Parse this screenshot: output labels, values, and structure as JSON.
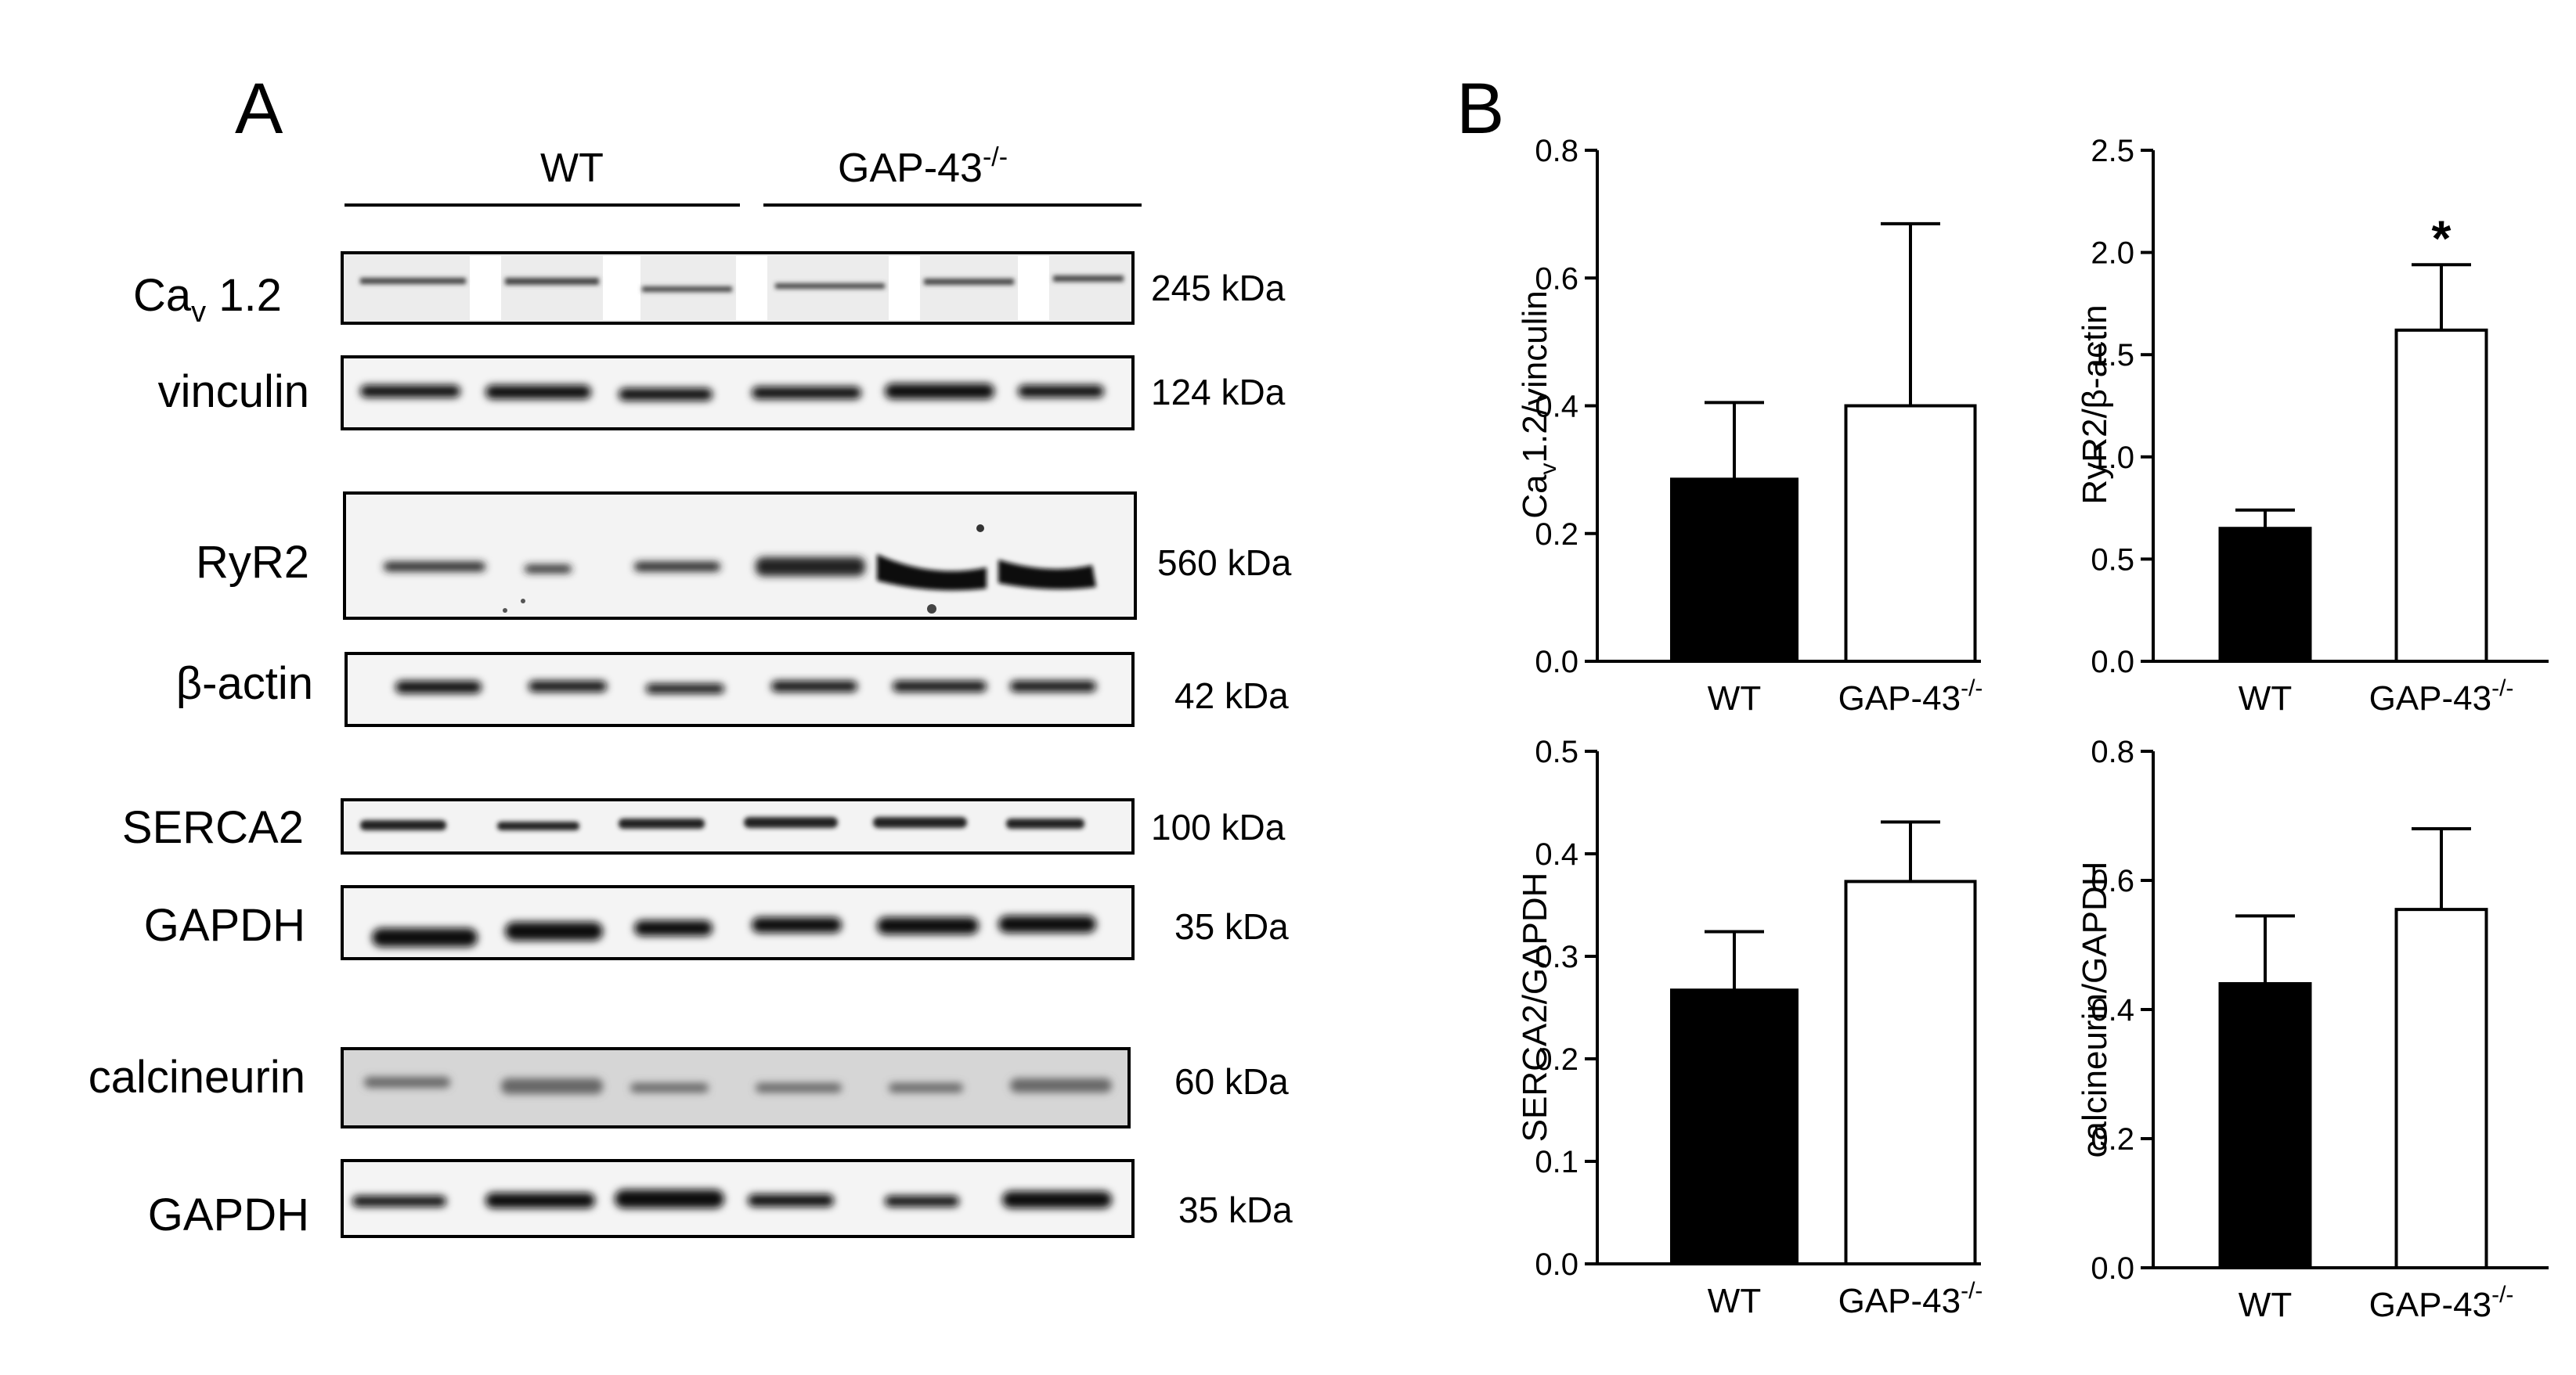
{
  "panels": {
    "a": "A",
    "b": "B"
  },
  "blot": {
    "groups": [
      {
        "label": "WT",
        "sup": ""
      },
      {
        "label": "GAP-43",
        "sup": "-/-"
      }
    ],
    "rows": [
      {
        "label": "Ca",
        "sub": "v",
        "tail": " 1.2",
        "kda": "245 kDa"
      },
      {
        "label": "vinculin",
        "kda": "124 kDa"
      },
      {
        "label": "RyR2",
        "kda": "560 kDa"
      },
      {
        "label": "β-actin",
        "kda": "42 kDa"
      },
      {
        "label": "SERCA2",
        "kda": "100 kDa"
      },
      {
        "label": "GAPDH",
        "kda": "35 kDa"
      },
      {
        "label": "calcineurin",
        "kda": "60 kDa"
      },
      {
        "label": "GAPDH",
        "kda": "35 kDa"
      }
    ]
  },
  "chart_data": [
    {
      "type": "bar",
      "ylabel": "Cav1.2/vinculin",
      "ylabel_parts": [
        "Ca",
        "v",
        "1.2/vinculin"
      ],
      "categories": [
        "WT",
        "GAP-43-/-"
      ],
      "values": [
        0.285,
        0.4
      ],
      "errors": [
        0.12,
        0.285
      ],
      "ylim": [
        0,
        0.8
      ],
      "yticks": [
        "0.0",
        "0.2",
        "0.4",
        "0.6",
        "0.8"
      ],
      "fills": [
        "#000000",
        "#ffffff"
      ],
      "significance": [
        "",
        ""
      ]
    },
    {
      "type": "bar",
      "ylabel": "RyR2/β-actin",
      "categories": [
        "WT",
        "GAP-43-/-"
      ],
      "values": [
        0.65,
        1.62
      ],
      "errors": [
        0.09,
        0.32
      ],
      "ylim": [
        0,
        2.5
      ],
      "yticks": [
        "0.0",
        "0.5",
        "1.0",
        "1.5",
        "2.0",
        "2.5"
      ],
      "fills": [
        "#000000",
        "#ffffff"
      ],
      "significance": [
        "",
        "*"
      ]
    },
    {
      "type": "bar",
      "ylabel": "SERCA2/GAPDH",
      "categories": [
        "WT",
        "GAP-43-/-"
      ],
      "values": [
        0.267,
        0.373
      ],
      "errors": [
        0.057,
        0.058
      ],
      "ylim": [
        0,
        0.5
      ],
      "yticks": [
        "0.0",
        "0.1",
        "0.2",
        "0.3",
        "0.4",
        "0.5"
      ],
      "fills": [
        "#000000",
        "#ffffff"
      ],
      "significance": [
        "",
        ""
      ]
    },
    {
      "type": "bar",
      "ylabel": "calcineurin/GAPDH",
      "categories": [
        "WT",
        "GAP-43-/-"
      ],
      "values": [
        0.44,
        0.555
      ],
      "errors": [
        0.105,
        0.125
      ],
      "ylim": [
        0,
        0.8
      ],
      "yticks": [
        "0.0",
        "0.2",
        "0.4",
        "0.6",
        "0.8"
      ],
      "fills": [
        "#000000",
        "#ffffff"
      ],
      "significance": [
        "",
        ""
      ]
    }
  ]
}
